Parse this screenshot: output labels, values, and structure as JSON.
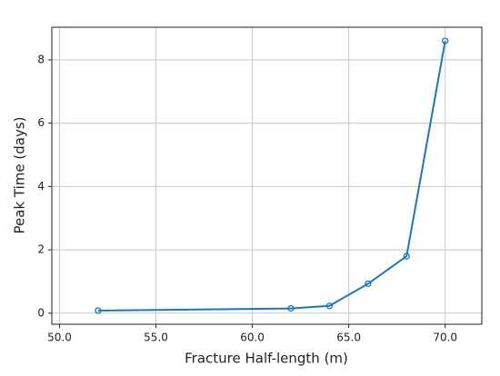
{
  "chart_data": {
    "type": "line",
    "x_label": "Fracture Half-length (m)",
    "y_label": "Peak Time (days)",
    "series": [
      {
        "color": "#1f77b4",
        "x": [
          52,
          62,
          64,
          66,
          68,
          70
        ],
        "values": [
          0.08,
          0.15,
          0.23,
          0.93,
          1.8,
          8.6
        ]
      }
    ],
    "xlim": [
      49.6,
      71.9
    ],
    "xticks": [
      {
        "value": 50,
        "label": "50.0"
      },
      {
        "value": 55,
        "label": "55.0"
      },
      {
        "value": 60,
        "label": "60.0"
      },
      {
        "value": 65,
        "label": "65.0"
      },
      {
        "value": 70,
        "label": "70.0"
      }
    ],
    "ylim": [
      -0.35,
      9.03
    ],
    "yticks": [
      0,
      2,
      4,
      6,
      8
    ],
    "grid": true
  }
}
